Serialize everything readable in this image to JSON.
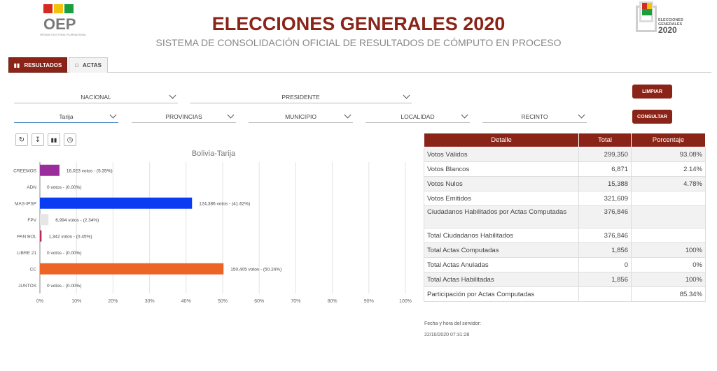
{
  "header": {
    "logo_left_text": "OEP",
    "logo_left_sub": "ÓRGANO ELECTORAL PLURINACIONAL",
    "title": "ELECCIONES GENERALES 2020",
    "subtitle": "SISTEMA DE CONSOLIDACIÓN OFICIAL DE RESULTADOS DE CÓMPUTO EN PROCESO",
    "logo_right_line1": "ELECCIONES",
    "logo_right_line2": "GENERALES",
    "logo_right_year": "2020"
  },
  "colors": {
    "brand": "#8b2418",
    "oep_red": "#d52b1e",
    "oep_yellow": "#f4c20d",
    "oep_green": "#1b9e3e"
  },
  "tabs": [
    {
      "label": "RESULTADOS",
      "icon": "bar-chart-icon",
      "active": true
    },
    {
      "label": "ACTAS",
      "icon": "document-icon",
      "active": false
    }
  ],
  "filters": {
    "ambito": "NACIONAL",
    "cargo": "PRESIDENTE",
    "departamento": "Tarija",
    "provincias": "PROVINCIAS",
    "municipio": "MUNICIPIO",
    "localidad": "LOCALIDAD",
    "recinto": "RECINTO"
  },
  "buttons": {
    "limpiar": "LIMPIAR",
    "consultar": "CONSULTAR"
  },
  "toolbar": [
    "refresh-icon",
    "download-icon",
    "bar-chart-icon",
    "clock-icon"
  ],
  "chart_data": {
    "type": "bar",
    "orientation": "horizontal",
    "title": "Bolivia-Tarija",
    "categories": [
      "CREEMOS",
      "ADN",
      "MAS-IPSP",
      "FPV",
      "PAN BOL",
      "LIBRE 21",
      "CC",
      "JUNTOS"
    ],
    "values": [
      5.35,
      0.0,
      41.62,
      2.34,
      0.45,
      0.0,
      50.24,
      0.0
    ],
    "labels": [
      "16,023 votos - (5.35%)",
      "0 votos - (0.00%)",
      "124,386 votos - (41.62%)",
      "6,994 votos - (2.34%)",
      "1,342 votos - (0.45%)",
      "0 votos - (0.00%)",
      "150,405 votos - (50.24%)",
      "0 votos - (0.00%)"
    ],
    "colors": [
      "#9b2c9b",
      "#dddddd",
      "#0a3df2",
      "#e6e6e6",
      "#c0285a",
      "#dddddd",
      "#ec6426",
      "#dddddd"
    ],
    "xlim": [
      0,
      100
    ],
    "xticks": [
      "0%",
      "10%",
      "20%",
      "30%",
      "40%",
      "50%",
      "60%",
      "70%",
      "80%",
      "90%",
      "100%"
    ],
    "grid": true
  },
  "table": {
    "headers": [
      "Detalle",
      "Total",
      "Porcentaje"
    ],
    "rows": [
      {
        "detalle": "Votos Válidos",
        "total": "299,350",
        "pct": "93.08%"
      },
      {
        "detalle": "Votos Blancos",
        "total": "6,871",
        "pct": "2.14%"
      },
      {
        "detalle": "Votos Nulos",
        "total": "15,388",
        "pct": "4.78%"
      },
      {
        "detalle": "Votos Emitidos",
        "total": "321,609",
        "pct": ""
      },
      {
        "detalle": "Ciudadanos Habilitados por Actas Computadas",
        "total": "376,846",
        "pct": ""
      },
      {
        "detalle": "Total Ciudadanos Habilitados",
        "total": "376,846",
        "pct": ""
      },
      {
        "detalle": "Total Actas Computadas",
        "total": "1,856",
        "pct": "100%"
      },
      {
        "detalle": "Total Actas Anuladas",
        "total": "0",
        "pct": "0%"
      },
      {
        "detalle": "Total Actas Habilitadas",
        "total": "1,856",
        "pct": "100%"
      },
      {
        "detalle": "Participación por Actas Computadas",
        "total": "",
        "pct": "85.34%"
      }
    ]
  },
  "server": {
    "label": "Fecha y hora del servidor:",
    "datetime": "22/10/2020 07:31:28"
  }
}
